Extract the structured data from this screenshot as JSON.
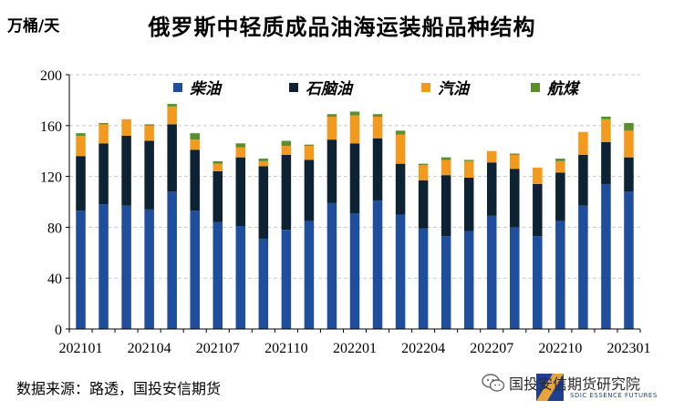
{
  "header": {
    "unit_label": "万桶/天",
    "title": "俄罗斯中轻质成品油海运装船品种结构"
  },
  "footer": {
    "source": "数据来源：路透，国投安信期货",
    "brand_name": "国投安信期货研究院",
    "brand_sub": "SDIC ESSENCE FUTURES"
  },
  "chart_data": {
    "type": "bar",
    "stacked": true,
    "ylim": [
      0,
      200
    ],
    "yticks": [
      0,
      40,
      80,
      120,
      160,
      200
    ],
    "grid": true,
    "legend_position": "top",
    "categories": [
      "202101",
      "202102",
      "202103",
      "202104",
      "202105",
      "202106",
      "202107",
      "202108",
      "202109",
      "202110",
      "202111",
      "202112",
      "202201",
      "202202",
      "202203",
      "202204",
      "202205",
      "202206",
      "202207",
      "202208",
      "202209",
      "202210",
      "202211",
      "202212",
      "202301"
    ],
    "xtick_labels": [
      "202101",
      "202104",
      "202107",
      "202110",
      "202201",
      "202204",
      "202207",
      "202210",
      "202301"
    ],
    "series": [
      {
        "name": "柴油",
        "color": "#1f4e9d",
        "values": [
          93,
          98,
          97,
          94,
          108,
          93,
          84,
          81,
          71,
          78,
          85,
          99,
          91,
          101,
          90,
          79,
          73,
          77,
          89,
          80,
          73,
          85,
          97,
          114,
          108
        ]
      },
      {
        "name": "石脑油",
        "color": "#0d2233",
        "values": [
          43,
          48,
          55,
          54,
          53,
          48,
          40,
          54,
          57,
          59,
          48,
          50,
          55,
          49,
          40,
          38,
          48,
          42,
          42,
          46,
          41,
          38,
          40,
          33,
          27
        ]
      },
      {
        "name": "汽油",
        "color": "#f19a1e",
        "values": [
          16,
          15,
          13,
          12,
          14,
          8,
          6,
          8,
          4,
          7,
          11,
          18,
          22,
          17,
          23,
          12,
          12,
          13,
          9,
          11,
          13,
          9,
          18,
          18,
          21
        ]
      },
      {
        "name": "航煤",
        "color": "#5b8e2e",
        "values": [
          2,
          1,
          0,
          1,
          2,
          5,
          2,
          3,
          2,
          4,
          1,
          2,
          3,
          2,
          3,
          1,
          2,
          1,
          0,
          1,
          0,
          2,
          0,
          2,
          6
        ]
      }
    ]
  }
}
